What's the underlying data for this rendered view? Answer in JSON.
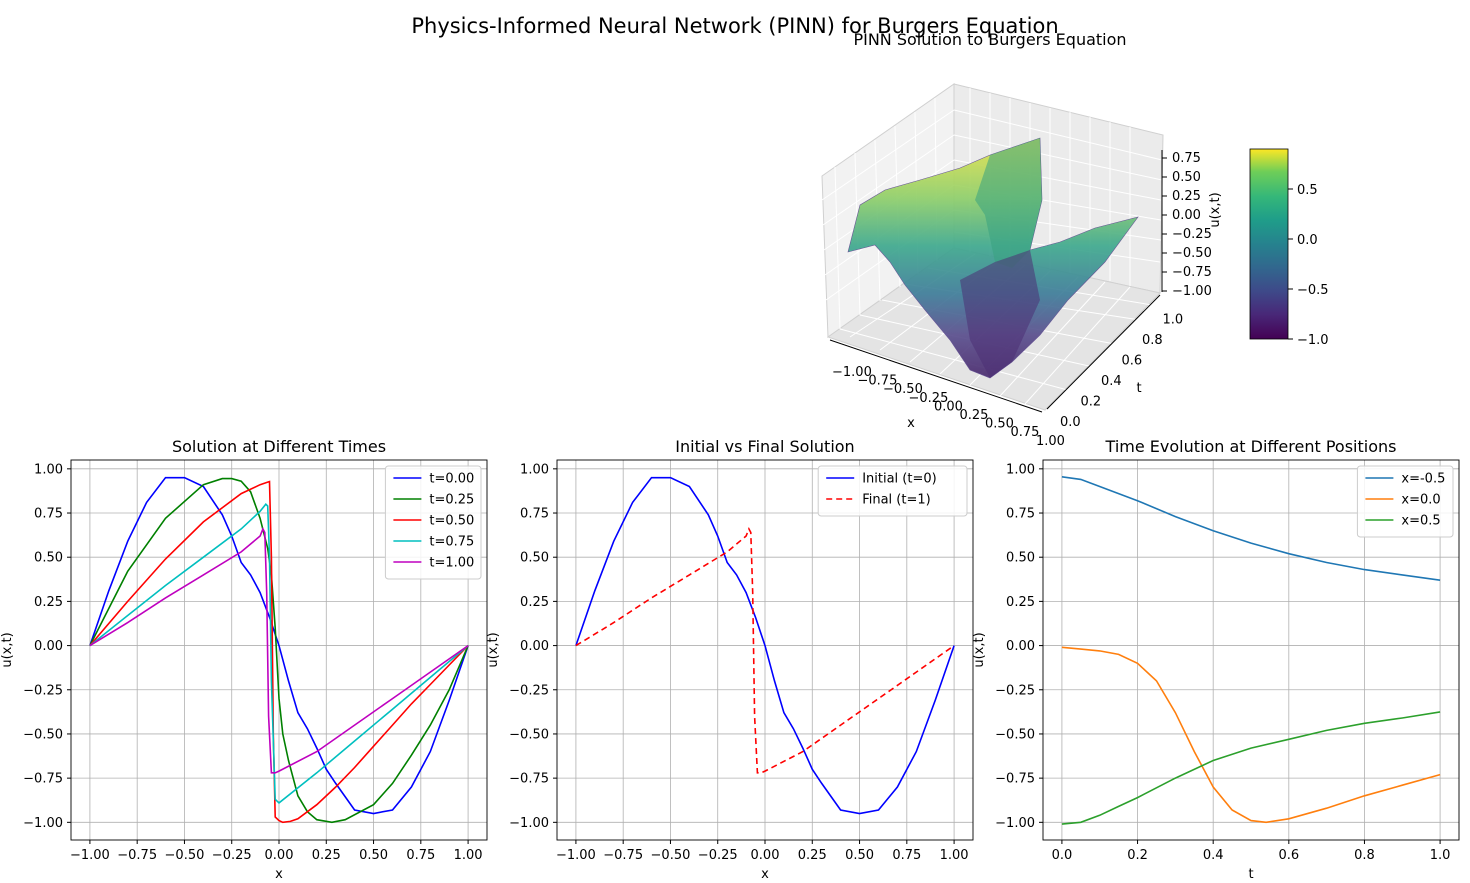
{
  "figure": {
    "suptitle": "Physics-Informed Neural Network (PINN) for Burgers Equation"
  },
  "colors": {
    "blue": "#0000ff",
    "green": "#008000",
    "red": "#ff0000",
    "cyan": "#00bfbf",
    "magenta": "#bf00bf",
    "c0": "#1f77b4",
    "c1": "#ff7f0e",
    "c2": "#2ca02c",
    "grid": "#b0b0b0"
  },
  "chart_data": [
    {
      "type": "surface3d",
      "title": "PINN Solution to Burgers Equation",
      "xlabel": "x",
      "ylabel": "t",
      "zlabel": "u(x,t)",
      "xlim": [
        -1,
        1
      ],
      "ylim": [
        0,
        1
      ],
      "zlim": [
        -1,
        0.9
      ],
      "xticks": [
        "−1.00",
        "−0.75",
        "−0.50",
        "−0.25",
        "0.00",
        "0.25",
        "0.50",
        "0.75",
        "1.00"
      ],
      "yticks": [
        "0.0",
        "0.2",
        "0.4",
        "0.6",
        "0.8",
        "1.0"
      ],
      "zticks": [
        "0.75",
        "0.50",
        "0.25",
        "0.00",
        "−0.25",
        "−0.50",
        "−0.75",
        "−1.00"
      ],
      "colormap": "viridis",
      "colorbar": {
        "min": -1.0,
        "max": 0.9,
        "ticks": [
          "0.5",
          "0.0",
          "−0.5",
          "−1.0"
        ],
        "tick_values": [
          0.5,
          0.0,
          -0.5,
          -1.0
        ]
      }
    },
    {
      "type": "line",
      "title": "Solution at Different Times",
      "xlabel": "x",
      "ylabel": "u(x,t)",
      "xlim": [
        -1.1,
        1.1
      ],
      "ylim": [
        -1.1,
        1.05
      ],
      "xticks": [
        -1,
        -0.75,
        -0.5,
        -0.25,
        0,
        0.25,
        0.5,
        0.75,
        1
      ],
      "xtick_labels": [
        "−1.00",
        "−0.75",
        "−0.50",
        "−0.25",
        "0.00",
        "0.25",
        "0.50",
        "0.75",
        "1.00"
      ],
      "yticks": [
        -1,
        -0.75,
        -0.5,
        -0.25,
        0,
        0.25,
        0.5,
        0.75,
        1
      ],
      "ytick_labels": [
        "−1.00",
        "−0.75",
        "−0.50",
        "−0.25",
        "0.00",
        "0.25",
        "0.50",
        "0.75",
        "1.00"
      ],
      "grid": true,
      "legend": "top-right",
      "series": [
        {
          "name": "t=0.00",
          "color": "#0000ff",
          "dash": "",
          "x": [
            -1,
            -0.9,
            -0.8,
            -0.7,
            -0.6,
            -0.5,
            -0.4,
            -0.3,
            -0.25,
            -0.2,
            -0.15,
            -0.1,
            -0.05,
            0,
            0.05,
            0.1,
            0.15,
            0.2,
            0.25,
            0.3,
            0.4,
            0.5,
            0.6,
            0.7,
            0.8,
            0.9,
            1
          ],
          "y": [
            0,
            0.31,
            0.59,
            0.81,
            0.95,
            0.95,
            0.9,
            0.74,
            0.62,
            0.47,
            0.4,
            0.3,
            0.16,
            0,
            -0.2,
            -0.38,
            -0.47,
            -0.58,
            -0.7,
            -0.78,
            -0.93,
            -0.95,
            -0.93,
            -0.8,
            -0.6,
            -0.31,
            0
          ]
        },
        {
          "name": "t=0.25",
          "color": "#008000",
          "dash": "",
          "x": [
            -1,
            -0.8,
            -0.6,
            -0.4,
            -0.3,
            -0.25,
            -0.2,
            -0.15,
            -0.1,
            -0.06,
            -0.04,
            -0.02,
            0,
            0.02,
            0.05,
            0.1,
            0.15,
            0.2,
            0.28,
            0.35,
            0.5,
            0.6,
            0.7,
            0.8,
            0.9,
            1
          ],
          "y": [
            0,
            0.42,
            0.72,
            0.91,
            0.945,
            0.945,
            0.93,
            0.87,
            0.72,
            0.55,
            0.4,
            0.1,
            -0.3,
            -0.5,
            -0.65,
            -0.85,
            -0.94,
            -0.985,
            -1.0,
            -0.985,
            -0.9,
            -0.78,
            -0.62,
            -0.45,
            -0.25,
            0
          ]
        },
        {
          "name": "t=0.50",
          "color": "#ff0000",
          "dash": "",
          "x": [
            -1,
            -0.8,
            -0.6,
            -0.4,
            -0.2,
            -0.1,
            -0.06,
            -0.05,
            -0.04,
            -0.03,
            -0.02,
            0,
            0.02,
            0.06,
            0.1,
            0.2,
            0.3,
            0.4,
            0.5,
            0.6,
            0.7,
            0.8,
            0.9,
            1
          ],
          "y": [
            0,
            0.25,
            0.49,
            0.7,
            0.86,
            0.91,
            0.925,
            0.928,
            0.5,
            -0.5,
            -0.97,
            -0.99,
            -1.0,
            -0.995,
            -0.98,
            -0.9,
            -0.8,
            -0.69,
            -0.57,
            -0.45,
            -0.33,
            -0.22,
            -0.11,
            0
          ]
        },
        {
          "name": "t=0.75",
          "color": "#00bfbf",
          "dash": "",
          "x": [
            -1,
            -0.8,
            -0.6,
            -0.4,
            -0.2,
            -0.1,
            -0.07,
            -0.06,
            -0.05,
            -0.04,
            -0.02,
            0,
            0.2,
            0.4,
            0.6,
            0.8,
            1
          ],
          "y": [
            0,
            0.17,
            0.34,
            0.5,
            0.66,
            0.76,
            0.8,
            0.79,
            0.5,
            -0.2,
            -0.87,
            -0.89,
            -0.72,
            -0.54,
            -0.36,
            -0.18,
            0
          ]
        },
        {
          "name": "t=1.00",
          "color": "#bf00bf",
          "dash": "",
          "x": [
            -1,
            -0.8,
            -0.6,
            -0.4,
            -0.2,
            -0.1,
            -0.085,
            -0.075,
            -0.065,
            -0.055,
            -0.04,
            -0.02,
            0,
            0.2,
            0.4,
            0.6,
            0.8,
            1
          ],
          "y": [
            0,
            0.13,
            0.27,
            0.4,
            0.53,
            0.62,
            0.66,
            0.64,
            0.3,
            -0.4,
            -0.72,
            -0.72,
            -0.71,
            -0.6,
            -0.45,
            -0.3,
            -0.15,
            0
          ]
        }
      ]
    },
    {
      "type": "line",
      "title": "Initial vs Final Solution",
      "xlabel": "x",
      "ylabel": "u(x,t)",
      "xlim": [
        -1.1,
        1.1
      ],
      "ylim": [
        -1.1,
        1.05
      ],
      "xticks": [
        -1,
        -0.75,
        -0.5,
        -0.25,
        0,
        0.25,
        0.5,
        0.75,
        1
      ],
      "xtick_labels": [
        "−1.00",
        "−0.75",
        "−0.50",
        "−0.25",
        "0.00",
        "0.25",
        "0.50",
        "0.75",
        "1.00"
      ],
      "yticks": [
        -1,
        -0.75,
        -0.5,
        -0.25,
        0,
        0.25,
        0.5,
        0.75,
        1
      ],
      "ytick_labels": [
        "−1.00",
        "−0.75",
        "−0.50",
        "−0.25",
        "0.00",
        "0.25",
        "0.50",
        "0.75",
        "1.00"
      ],
      "grid": true,
      "legend": "top-right",
      "series": [
        {
          "name": "Initial (t=0)",
          "color": "#0000ff",
          "dash": "",
          "x": [
            -1,
            -0.9,
            -0.8,
            -0.7,
            -0.6,
            -0.5,
            -0.4,
            -0.3,
            -0.25,
            -0.2,
            -0.15,
            -0.1,
            -0.05,
            0,
            0.05,
            0.1,
            0.15,
            0.2,
            0.25,
            0.3,
            0.4,
            0.5,
            0.6,
            0.7,
            0.8,
            0.9,
            1
          ],
          "y": [
            0,
            0.31,
            0.59,
            0.81,
            0.95,
            0.95,
            0.9,
            0.74,
            0.62,
            0.47,
            0.4,
            0.3,
            0.16,
            0,
            -0.2,
            -0.38,
            -0.47,
            -0.58,
            -0.7,
            -0.78,
            -0.93,
            -0.95,
            -0.93,
            -0.8,
            -0.6,
            -0.31,
            0
          ]
        },
        {
          "name": "Final (t=1)",
          "color": "#ff0000",
          "dash": "6,4",
          "x": [
            -1,
            -0.8,
            -0.6,
            -0.4,
            -0.2,
            -0.1,
            -0.085,
            -0.075,
            -0.065,
            -0.055,
            -0.04,
            -0.02,
            0,
            0.2,
            0.4,
            0.6,
            0.8,
            1
          ],
          "y": [
            0,
            0.13,
            0.27,
            0.4,
            0.53,
            0.62,
            0.66,
            0.64,
            0.3,
            -0.4,
            -0.72,
            -0.72,
            -0.71,
            -0.6,
            -0.45,
            -0.3,
            -0.15,
            0
          ]
        }
      ]
    },
    {
      "type": "line",
      "title": "Time Evolution at Different Positions",
      "xlabel": "t",
      "ylabel": "u(x,t)",
      "xlim": [
        -0.05,
        1.05
      ],
      "ylim": [
        -1.1,
        1.05
      ],
      "xticks": [
        0,
        0.2,
        0.4,
        0.6,
        0.8,
        1
      ],
      "xtick_labels": [
        "0.0",
        "0.2",
        "0.4",
        "0.6",
        "0.8",
        "1.0"
      ],
      "yticks": [
        -1,
        -0.75,
        -0.5,
        -0.25,
        0,
        0.25,
        0.5,
        0.75,
        1
      ],
      "ytick_labels": [
        "−1.00",
        "−0.75",
        "−0.50",
        "−0.25",
        "0.00",
        "0.25",
        "0.50",
        "0.75",
        "1.00"
      ],
      "grid": true,
      "legend": "top-right",
      "series": [
        {
          "name": "x=-0.5",
          "color": "#1f77b4",
          "dash": "",
          "x": [
            0,
            0.05,
            0.1,
            0.15,
            0.2,
            0.3,
            0.4,
            0.5,
            0.6,
            0.7,
            0.8,
            0.9,
            1
          ],
          "y": [
            0.955,
            0.94,
            0.9,
            0.86,
            0.82,
            0.73,
            0.65,
            0.58,
            0.52,
            0.47,
            0.43,
            0.4,
            0.37
          ]
        },
        {
          "name": "x=0.0",
          "color": "#ff7f0e",
          "dash": "",
          "x": [
            0,
            0.05,
            0.1,
            0.15,
            0.2,
            0.25,
            0.3,
            0.35,
            0.4,
            0.45,
            0.5,
            0.54,
            0.6,
            0.7,
            0.8,
            0.9,
            1
          ],
          "y": [
            -0.01,
            -0.02,
            -0.03,
            -0.05,
            -0.1,
            -0.2,
            -0.38,
            -0.6,
            -0.8,
            -0.93,
            -0.99,
            -1.0,
            -0.98,
            -0.92,
            -0.85,
            -0.79,
            -0.73
          ]
        },
        {
          "name": "x=0.5",
          "color": "#2ca02c",
          "dash": "",
          "x": [
            0,
            0.05,
            0.1,
            0.15,
            0.2,
            0.3,
            0.4,
            0.5,
            0.6,
            0.7,
            0.8,
            0.9,
            1
          ],
          "y": [
            -1.01,
            -1.0,
            -0.96,
            -0.91,
            -0.86,
            -0.75,
            -0.65,
            -0.58,
            -0.53,
            -0.48,
            -0.44,
            -0.41,
            -0.375
          ]
        }
      ]
    }
  ]
}
